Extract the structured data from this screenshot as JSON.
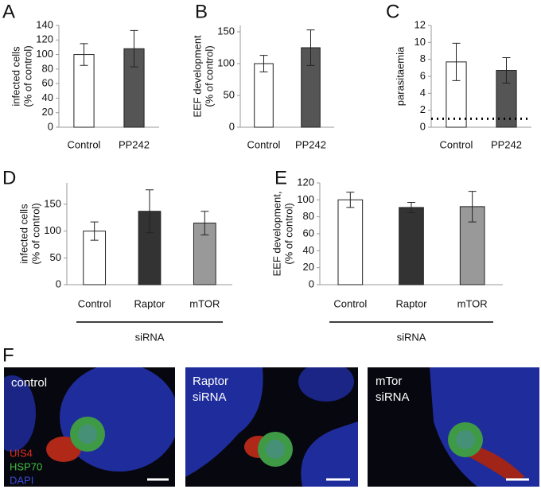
{
  "chart_data": [
    {
      "type": "bar",
      "panel": "A",
      "ylabel": [
        "infected cells",
        "(% of control)"
      ],
      "categories": [
        "Control",
        "PP242"
      ],
      "values": [
        100,
        108
      ],
      "errors": [
        15,
        25
      ],
      "colors": [
        "#ffffff",
        "#555555"
      ],
      "ylim": [
        0,
        140
      ],
      "yticks": [
        0,
        20,
        40,
        60,
        80,
        100,
        120,
        140
      ]
    },
    {
      "type": "bar",
      "panel": "B",
      "ylabel": [
        "EEF development",
        "(% of control)"
      ],
      "categories": [
        "Control",
        "PP242"
      ],
      "values": [
        100,
        125
      ],
      "errors": [
        13,
        28
      ],
      "colors": [
        "#ffffff",
        "#555555"
      ],
      "ylim": [
        0,
        160
      ],
      "yticks": [
        0,
        50,
        100,
        150
      ]
    },
    {
      "type": "bar",
      "panel": "C",
      "ylabel": [
        "parasitaemia"
      ],
      "categories": [
        "Control",
        "PP242"
      ],
      "values": [
        7.7,
        6.7
      ],
      "errors": [
        2.2,
        1.5
      ],
      "colors": [
        "#ffffff",
        "#555555"
      ],
      "ylim": [
        0,
        12
      ],
      "yticks": [
        0,
        2,
        4,
        6,
        8,
        10,
        12
      ],
      "threshold": 1
    },
    {
      "type": "bar",
      "panel": "D",
      "ylabel": [
        "infected cells",
        "(% of control)"
      ],
      "categories": [
        "Control",
        "Raptor",
        "mTOR"
      ],
      "values": [
        100,
        137,
        115
      ],
      "errors": [
        17,
        40,
        22
      ],
      "colors": [
        "#ffffff",
        "#333333",
        "#999999"
      ],
      "ylim": [
        0,
        190
      ],
      "yticks": [
        0,
        50,
        100,
        150
      ],
      "group_label": "siRNA"
    },
    {
      "type": "bar",
      "panel": "E",
      "ylabel": [
        "EEF development,",
        "(% of control)"
      ],
      "categories": [
        "Control",
        "Raptor",
        "mTOR"
      ],
      "values": [
        100,
        91,
        92
      ],
      "errors": [
        9,
        6,
        18
      ],
      "colors": [
        "#ffffff",
        "#333333",
        "#999999"
      ],
      "ylim": [
        0,
        120
      ],
      "yticks": [
        0,
        20,
        40,
        60,
        80,
        100,
        120
      ],
      "group_label": "siRNA"
    }
  ],
  "images": {
    "panel": "F",
    "panels": [
      {
        "label": [
          "control"
        ]
      },
      {
        "label": [
          "Raptor",
          "siRNA"
        ]
      },
      {
        "label": [
          "mTor",
          "siRNA"
        ]
      }
    ],
    "stains": [
      "UIS4",
      "HSP70",
      "DAPI"
    ]
  }
}
